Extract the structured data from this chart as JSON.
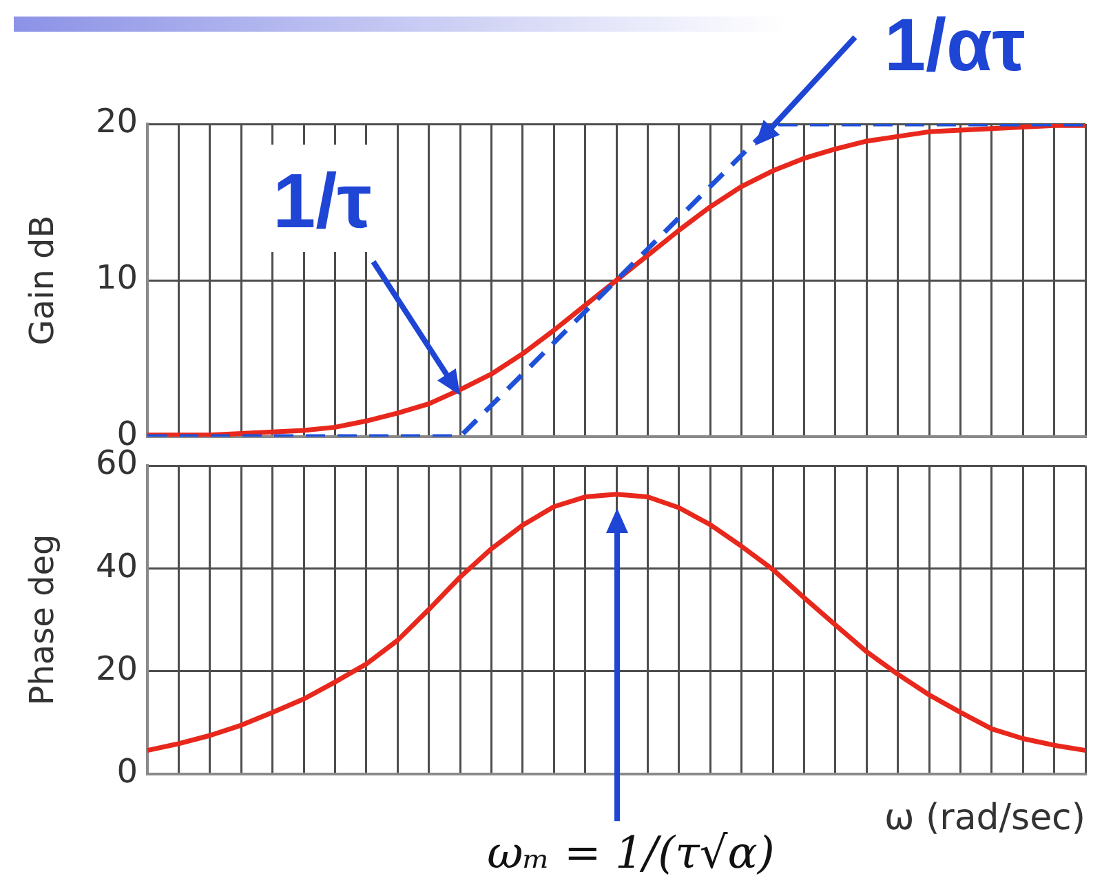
{
  "chart_data": [
    {
      "type": "line",
      "categories": [
        null,
        null,
        null,
        null,
        null,
        null,
        null,
        null,
        null,
        null,
        null,
        null,
        null,
        null,
        null,
        null,
        null,
        null,
        null,
        null,
        null,
        null,
        null,
        null,
        null,
        null,
        null,
        null,
        null,
        null,
        null
      ],
      "series": [
        {
          "color": "#e8281c",
          "values": [
            0.1,
            0.1,
            0.1,
            0.2,
            0.3,
            0.4,
            0.6,
            1.0,
            1.5,
            2.1,
            3.0,
            4.0,
            5.3,
            6.8,
            8.4,
            10.0,
            11.6,
            13.2,
            14.7,
            16.0,
            17.0,
            17.8,
            18.4,
            18.9,
            19.2,
            19.5,
            19.6,
            19.7,
            19.8,
            19.9,
            19.9
          ]
        },
        {
          "color": "#1f50d8",
          "line_style": "dashed",
          "values": [
            0,
            0,
            0,
            0,
            0,
            0,
            0,
            0,
            0,
            0,
            0,
            2,
            4,
            6,
            8,
            10,
            12,
            14,
            16,
            18,
            20,
            20,
            20,
            20,
            20,
            20,
            20,
            20,
            20,
            20,
            20
          ]
        }
      ],
      "ylabel": "Gain dB",
      "ylim": [
        0,
        20
      ],
      "yticks": [
        0,
        10,
        20
      ],
      "grid": true,
      "marker": "none",
      "tick_labels": "y",
      "annotations": [
        "1/τ",
        "1/ατ"
      ]
    },
    {
      "type": "line",
      "categories": [
        null,
        null,
        null,
        null,
        null,
        null,
        null,
        null,
        null,
        null,
        null,
        null,
        null,
        null,
        null,
        null,
        null,
        null,
        null,
        null,
        null,
        null,
        null,
        null,
        null,
        null,
        null,
        null,
        null,
        null,
        null
      ],
      "series": [
        {
          "color": "#e8281c",
          "values": [
            4.6,
            5.9,
            7.5,
            9.5,
            12.0,
            14.6,
            17.9,
            21.4,
            26.0,
            32.0,
            38.3,
            43.8,
            48.4,
            52.0,
            53.9,
            54.4,
            53.9,
            51.8,
            48.5,
            44.3,
            39.8,
            34.3,
            29.0,
            23.8,
            19.4,
            15.4,
            12.0,
            8.8,
            6.9,
            5.6,
            4.6
          ]
        }
      ],
      "ylabel": "Phase deg",
      "xlabel": "ω (rad/sec)",
      "ylim": [
        0,
        60
      ],
      "yticks": [
        0,
        20,
        40,
        60
      ],
      "grid": true,
      "marker": "none",
      "tick_labels": "y",
      "annotations": [
        "ωₘ = 1/(τ√α)"
      ]
    }
  ]
}
